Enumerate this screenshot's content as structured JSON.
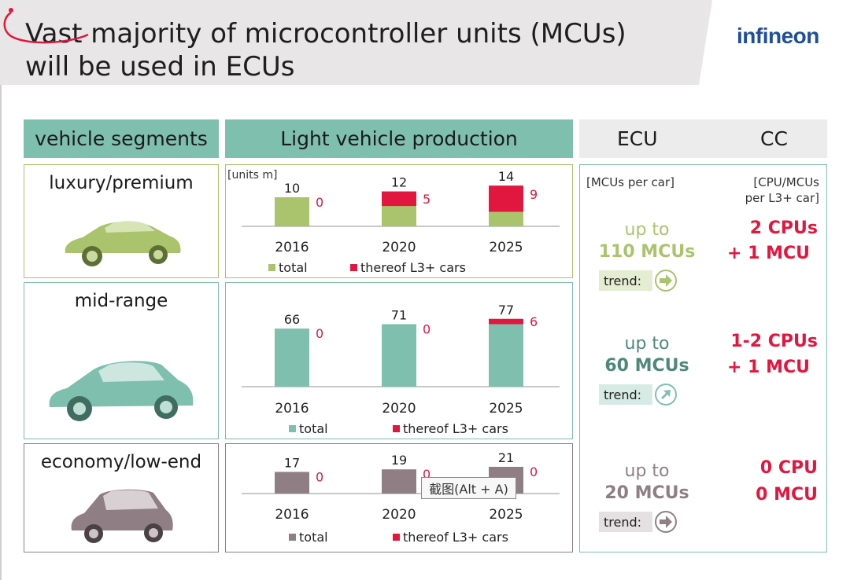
{
  "title_line1": "Vast majority of microcontroller units (MCUs)",
  "title_line2": "will be used in ECUs",
  "logo_text": "infineon",
  "headers": {
    "segments": "vehicle segments",
    "production": "Light vehicle production",
    "ecu": "ECU",
    "cc": "CC"
  },
  "segments": [
    {
      "label": "luxury/premium",
      "icon": "car-luxury-icon"
    },
    {
      "label": "mid-range",
      "icon": "car-midrange-icon"
    },
    {
      "label": "economy/low-end",
      "icon": "car-economy-icon"
    }
  ],
  "ecu_notes": {
    "mcus_per_car": "[MCUs per car]",
    "cpu_line1": "[CPU/MCUs",
    "cpu_line2": "per L3+ car]"
  },
  "ecu_rows": [
    {
      "upto": "up to",
      "mcus": "110 MCUs",
      "cpu1": "2 CPUs",
      "cpu2": "+ 1 MCU",
      "trend_label": "trend:",
      "trend_icon": "arrow-right-icon"
    },
    {
      "upto": "up to",
      "mcus": "60 MCUs",
      "cpu1": "1-2 CPUs",
      "cpu2": "+ 1 MCU",
      "trend_label": "trend:",
      "trend_icon": "arrow-up-right-icon"
    },
    {
      "upto": "up to",
      "mcus": "20 MCUs",
      "cpu1": "0 CPU",
      "cpu2": "0 MCU",
      "trend_label": "trend:",
      "trend_icon": "arrow-right-icon"
    }
  ],
  "colors": {
    "lux": "#a9c46c",
    "mid": "#7fbfae",
    "eco": "#8f7f84",
    "red": "#e2173f",
    "lux_mcus": "#a9c46c",
    "mid_mcus": "#4e8878",
    "eco_mcus": "#8f7f84"
  },
  "tooltip": "截图(Alt + A)",
  "chart_data": [
    {
      "type": "bar",
      "unit_label": "[units m]",
      "categories": [
        "2016",
        "2020",
        "2025"
      ],
      "series": [
        {
          "name": "total",
          "values": [
            10,
            12,
            14
          ]
        },
        {
          "name": "thereof L3+ cars",
          "values": [
            0,
            5,
            9
          ]
        }
      ],
      "legend_total": "total",
      "legend_l3": "thereof L3+ cars"
    },
    {
      "type": "bar",
      "categories": [
        "2016",
        "2020",
        "2025"
      ],
      "series": [
        {
          "name": "total",
          "values": [
            66,
            71,
            77
          ]
        },
        {
          "name": "thereof L3+ cars",
          "values": [
            0,
            0,
            6
          ]
        }
      ],
      "legend_total": "total",
      "legend_l3": "thereof L3+ cars"
    },
    {
      "type": "bar",
      "categories": [
        "2016",
        "2020",
        "2025"
      ],
      "series": [
        {
          "name": "total",
          "values": [
            17,
            19,
            21
          ]
        },
        {
          "name": "thereof L3+ cars",
          "values": [
            0,
            0,
            0
          ]
        }
      ],
      "legend_total": "total",
      "legend_l3": "thereof L3+ cars"
    }
  ]
}
